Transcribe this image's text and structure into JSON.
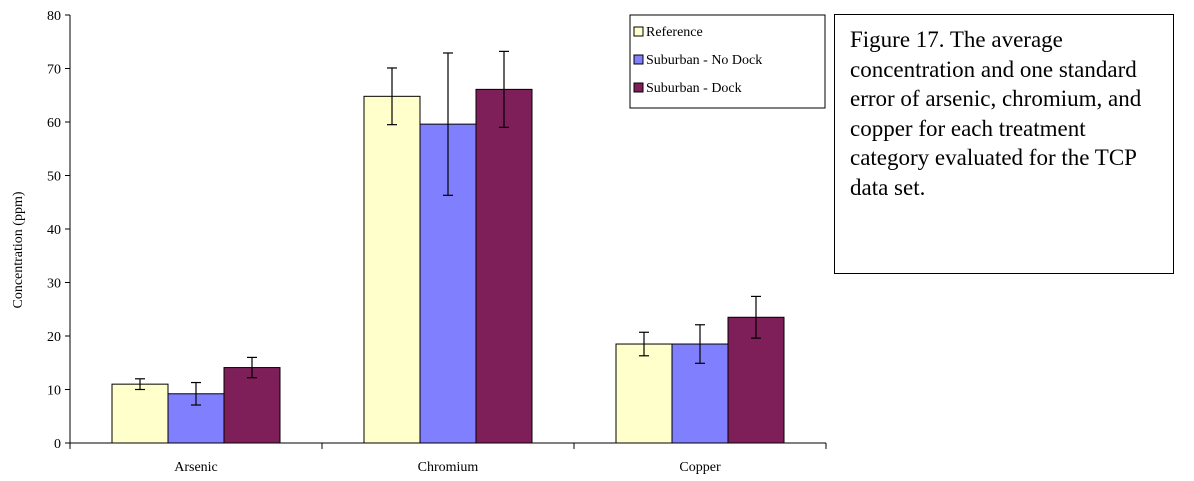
{
  "caption": "Figure 17.  The average concentration and one standard error of arsenic, chromium, and copper for each treatment category evaluated for the TCP data set.",
  "chart_data": {
    "type": "bar",
    "title": "",
    "xlabel": "",
    "ylabel": "Concentration (ppm)",
    "ylim": [
      0,
      80
    ],
    "yticks": [
      0,
      10,
      20,
      30,
      40,
      50,
      60,
      70,
      80
    ],
    "categories": [
      "Arsenic",
      "Chromium",
      "Copper"
    ],
    "series": [
      {
        "name": "Reference",
        "color": "#ffffcc",
        "values": [
          11.0,
          64.8,
          18.5
        ],
        "errors": [
          1.0,
          5.3,
          2.2
        ]
      },
      {
        "name": "Suburban - No Dock",
        "color": "#8080ff",
        "values": [
          9.2,
          59.6,
          18.5
        ],
        "errors": [
          2.1,
          13.3,
          3.6
        ]
      },
      {
        "name": "Suburban - Dock",
        "color": "#7f1f5a",
        "values": [
          14.1,
          66.1,
          23.5
        ],
        "errors": [
          1.9,
          7.1,
          3.9
        ]
      }
    ],
    "legend": "top-right",
    "grid": false
  }
}
